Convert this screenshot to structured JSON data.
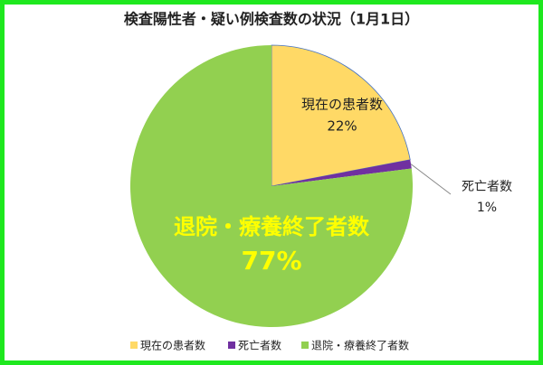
{
  "chart_data": {
    "type": "pie",
    "title": "検査陽性者・疑い例検査数の状況（1月1日）",
    "categories": [
      "現在の患者数",
      "死亡者数",
      "退院・療養終了者数"
    ],
    "values": [
      22,
      1,
      77
    ],
    "value_labels": [
      "22%",
      "1%",
      "77%"
    ],
    "colors": [
      "#ffd966",
      "#7030a0",
      "#92d050"
    ]
  }
}
